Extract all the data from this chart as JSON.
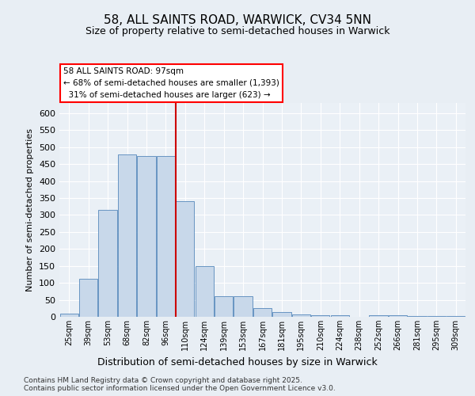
{
  "title_line1": "58, ALL SAINTS ROAD, WARWICK, CV34 5NN",
  "title_line2": "Size of property relative to semi-detached houses in Warwick",
  "xlabel": "Distribution of semi-detached houses by size in Warwick",
  "ylabel": "Number of semi-detached properties",
  "footer": "Contains HM Land Registry data © Crown copyright and database right 2025.\nContains public sector information licensed under the Open Government Licence v3.0.",
  "bar_labels": [
    "25sqm",
    "39sqm",
    "53sqm",
    "68sqm",
    "82sqm",
    "96sqm",
    "110sqm",
    "124sqm",
    "139sqm",
    "153sqm",
    "167sqm",
    "181sqm",
    "195sqm",
    "210sqm",
    "224sqm",
    "238sqm",
    "252sqm",
    "266sqm",
    "281sqm",
    "295sqm",
    "309sqm"
  ],
  "bar_values": [
    10,
    113,
    315,
    478,
    473,
    473,
    340,
    150,
    60,
    60,
    25,
    14,
    8,
    5,
    5,
    0,
    5,
    5,
    3,
    3,
    2
  ],
  "bar_color": "#c8d8ea",
  "bar_edge_color": "#5588bb",
  "vline_x": 5.5,
  "vline_color": "#cc0000",
  "property_size": "97sqm",
  "pct_smaller": 68,
  "count_smaller": "1,393",
  "pct_larger": 31,
  "count_larger": "623",
  "ylim": [
    0,
    630
  ],
  "yticks": [
    0,
    50,
    100,
    150,
    200,
    250,
    300,
    350,
    400,
    450,
    500,
    550,
    600
  ],
  "background_color": "#e8eef4",
  "plot_bg_color": "#eaf0f6",
  "grid_color": "#ffffff",
  "title_fontsize": 11,
  "subtitle_fontsize": 9
}
